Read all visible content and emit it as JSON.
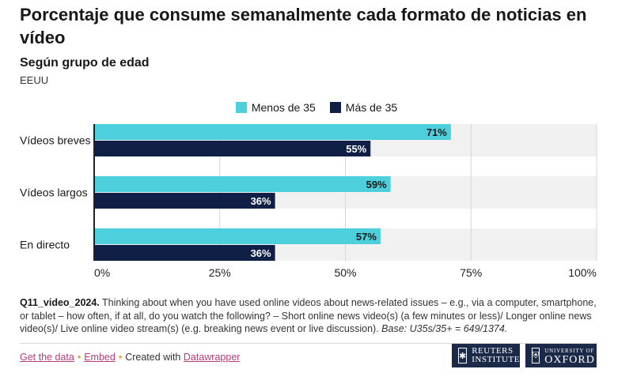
{
  "header": {
    "title": "Porcentaje que consume semanalmente cada formato de noticias en vídeo",
    "subtitle": "Según grupo de edad",
    "region": "EEUU"
  },
  "colors": {
    "menos35": "#4ecfdc",
    "mas35": "#0f1f45",
    "band": "#f1f1f1",
    "grid": "#d6d6d6",
    "axis": "#222222"
  },
  "chart_data": {
    "type": "bar",
    "orientation": "horizontal",
    "categories": [
      "Vídeos breves",
      "Vídeos largos",
      "En directo"
    ],
    "series": [
      {
        "name": "Menos de 35",
        "values": [
          71,
          59,
          57
        ]
      },
      {
        "name": "Más de 35",
        "values": [
          55,
          36,
          36
        ]
      }
    ],
    "value_suffix": "%",
    "xlim": [
      0,
      100
    ],
    "xticks": [
      "0%",
      "25%",
      "50%",
      "75%",
      "100%"
    ],
    "legend": "top-center"
  },
  "note": {
    "code": "Q11_video_2024.",
    "text": " Thinking about when you have used online videos about news-related issues – e.g., via a computer, smartphone, or tablet – how often, if at all, do you watch the following? – Short online news video(s) (a few minutes or less)/ Longer online news video(s)/ Live online video stream(s) (e.g. breaking news event or live discussion). ",
    "base": "Base: U35s/35+ = 649/1374."
  },
  "footer": {
    "get_data": "Get the data",
    "embed": "Embed",
    "created_with": "Created with",
    "datawrapper": "Datawrapper",
    "sep": "•"
  },
  "logos": {
    "reuters_line1": "REUTERS",
    "reuters_line2": "INSTITUTE",
    "oxford_line1": "UNIVERSITY OF",
    "oxford_line2": "OXFORD"
  }
}
